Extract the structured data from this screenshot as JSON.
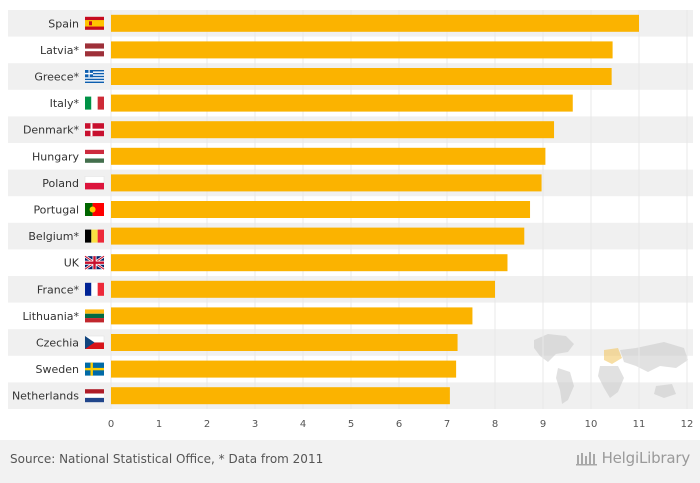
{
  "chart_data": {
    "type": "bar",
    "orientation": "horizontal",
    "categories": [
      "Spain",
      "Latvia*",
      "Greece*",
      "Italy*",
      "Denmark*",
      "Hungary",
      "Poland",
      "Portugal",
      "Belgium*",
      "UK",
      "France*",
      "Lithuania*",
      "Czechia",
      "Sweden",
      "Netherlands"
    ],
    "values": [
      11.0,
      10.45,
      10.43,
      9.62,
      9.23,
      9.05,
      8.97,
      8.73,
      8.61,
      8.26,
      8.0,
      7.53,
      7.22,
      7.19,
      7.06
    ],
    "xlim": [
      0,
      12
    ],
    "xticks": [
      0,
      1,
      2,
      3,
      4,
      5,
      6,
      7,
      8,
      9,
      10,
      11,
      12
    ],
    "bar_color": "#fbb300",
    "row_band_color": "#f0f0f0"
  },
  "flags": [
    "spain-flag",
    "latvia-flag",
    "greece-flag",
    "italy-flag",
    "denmark-flag",
    "hungary-flag",
    "poland-flag",
    "portugal-flag",
    "belgium-flag",
    "uk-flag",
    "france-flag",
    "lithuania-flag",
    "czechia-flag",
    "sweden-flag",
    "netherlands-flag"
  ],
  "footer": {
    "source": "Source: National Statistical Office, * Data from 2011",
    "brand": "HelgiLibrary"
  }
}
